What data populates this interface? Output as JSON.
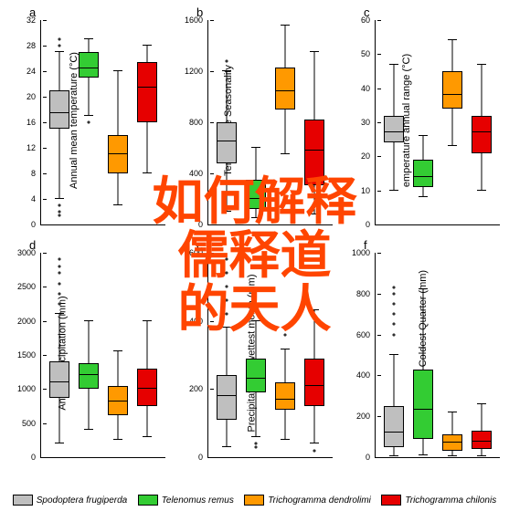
{
  "overlay": {
    "line1": "如何解释儒释道",
    "line2": "的天人",
    "color": "#ff4500",
    "fontsize": 56
  },
  "colors": {
    "s1": "#bfbfbf",
    "s2": "#33cc33",
    "s3": "#ff9900",
    "s4": "#e60000",
    "axis": "#000000",
    "bg": "#ffffff"
  },
  "legend": [
    {
      "label": "Spodoptera frugiperda",
      "colorKey": "s1"
    },
    {
      "label": "Telenomus remus",
      "colorKey": "s2"
    },
    {
      "label": "Trichogramma dendrolimi",
      "colorKey": "s3"
    },
    {
      "label": "Trichogramma chilonis",
      "colorKey": "s4"
    }
  ],
  "panels": [
    {
      "id": "a",
      "label": "a",
      "ylabel": "Annual mean temperature (°C)",
      "ymin": 0,
      "ymax": 32,
      "ytick_step": 4,
      "series": [
        {
          "colorKey": "s1",
          "min": 4,
          "q1": 15,
          "med": 17.5,
          "q3": 21,
          "max": 27,
          "outliers": [
            28,
            29,
            3,
            2,
            1.5
          ]
        },
        {
          "colorKey": "s2",
          "min": 17,
          "q1": 23,
          "med": 24.5,
          "q3": 27,
          "max": 29,
          "outliers": [
            16
          ]
        },
        {
          "colorKey": "s3",
          "min": 3,
          "q1": 8,
          "med": 11,
          "q3": 14,
          "max": 24,
          "outliers": []
        },
        {
          "colorKey": "s4",
          "min": 8,
          "q1": 16,
          "med": 21.5,
          "q3": 25.5,
          "max": 28,
          "outliers": []
        }
      ]
    },
    {
      "id": "b",
      "label": "b",
      "ylabel": "Temperature Seasonality",
      "ymin": 0,
      "ymax": 1600,
      "ytick_step": 400,
      "series": [
        {
          "colorKey": "s1",
          "min": 100,
          "q1": 480,
          "med": 650,
          "q3": 800,
          "max": 1200,
          "outliers": [
            1280
          ]
        },
        {
          "colorKey": "s2",
          "min": 50,
          "q1": 120,
          "med": 200,
          "q3": 350,
          "max": 600,
          "outliers": []
        },
        {
          "colorKey": "s3",
          "min": 550,
          "q1": 900,
          "med": 1040,
          "q3": 1230,
          "max": 1560,
          "outliers": []
        },
        {
          "colorKey": "s4",
          "min": 80,
          "q1": 310,
          "med": 580,
          "q3": 820,
          "max": 1350,
          "outliers": []
        }
      ]
    },
    {
      "id": "c",
      "label": "c",
      "ylabel": "emperature annual range (°C)",
      "ymin": 0,
      "ymax": 60,
      "ytick_step": 10,
      "series": [
        {
          "colorKey": "s1",
          "min": 10,
          "q1": 24,
          "med": 27,
          "q3": 32,
          "max": 47,
          "outliers": []
        },
        {
          "colorKey": "s2",
          "min": 8,
          "q1": 11,
          "med": 14,
          "q3": 19,
          "max": 26,
          "outliers": []
        },
        {
          "colorKey": "s3",
          "min": 23,
          "q1": 34,
          "med": 38,
          "q3": 45,
          "max": 54,
          "outliers": []
        },
        {
          "colorKey": "s4",
          "min": 10,
          "q1": 21,
          "med": 27,
          "q3": 32,
          "max": 47,
          "outliers": []
        }
      ]
    },
    {
      "id": "d",
      "label": "d",
      "ylabel": "Annual precipitation (mm)",
      "ymin": 0,
      "ymax": 3000,
      "ytick_step": 500,
      "series": [
        {
          "colorKey": "s1",
          "min": 200,
          "q1": 870,
          "med": 1100,
          "q3": 1400,
          "max": 2100,
          "outliers": [
            2250,
            2400,
            2550,
            2700,
            2800,
            2900
          ]
        },
        {
          "colorKey": "s2",
          "min": 400,
          "q1": 1000,
          "med": 1200,
          "q3": 1380,
          "max": 2000,
          "outliers": []
        },
        {
          "colorKey": "s3",
          "min": 250,
          "q1": 620,
          "med": 820,
          "q3": 1050,
          "max": 1550,
          "outliers": []
        },
        {
          "colorKey": "s4",
          "min": 300,
          "q1": 750,
          "med": 1000,
          "q3": 1300,
          "max": 2000,
          "outliers": []
        }
      ]
    },
    {
      "id": "e",
      "label": "e",
      "ylabel": "Precipitation of wettest month (mm)",
      "ymin": 0,
      "ymax": 600,
      "ytick_step": 200,
      "series": [
        {
          "colorKey": "s1",
          "min": 30,
          "q1": 110,
          "med": 180,
          "q3": 240,
          "max": 380,
          "outliers": [
            420,
            460,
            500,
            540,
            580
          ]
        },
        {
          "colorKey": "s2",
          "min": 60,
          "q1": 190,
          "med": 230,
          "q3": 290,
          "max": 400,
          "outliers": [
            40,
            30
          ]
        },
        {
          "colorKey": "s3",
          "min": 50,
          "q1": 140,
          "med": 170,
          "q3": 220,
          "max": 315,
          "outliers": [
            360,
            380
          ]
        },
        {
          "colorKey": "s4",
          "min": 40,
          "q1": 150,
          "med": 210,
          "q3": 290,
          "max": 430,
          "outliers": [
            20
          ]
        }
      ]
    },
    {
      "id": "f",
      "label": "f",
      "ylabel": "Precipitation of Coldest Quarter (mm)",
      "ymin": 0,
      "ymax": 1000,
      "ytick_step": 200,
      "series": [
        {
          "colorKey": "s1",
          "min": 5,
          "q1": 50,
          "med": 120,
          "q3": 250,
          "max": 500,
          "outliers": [
            600,
            650,
            700,
            750,
            800,
            830
          ]
        },
        {
          "colorKey": "s2",
          "min": 10,
          "q1": 90,
          "med": 230,
          "q3": 430,
          "max": 820,
          "outliers": []
        },
        {
          "colorKey": "s3",
          "min": 5,
          "q1": 30,
          "med": 70,
          "q3": 110,
          "max": 220,
          "outliers": []
        },
        {
          "colorKey": "s4",
          "min": 5,
          "q1": 40,
          "med": 75,
          "q3": 130,
          "max": 260,
          "outliers": []
        }
      ]
    }
  ]
}
